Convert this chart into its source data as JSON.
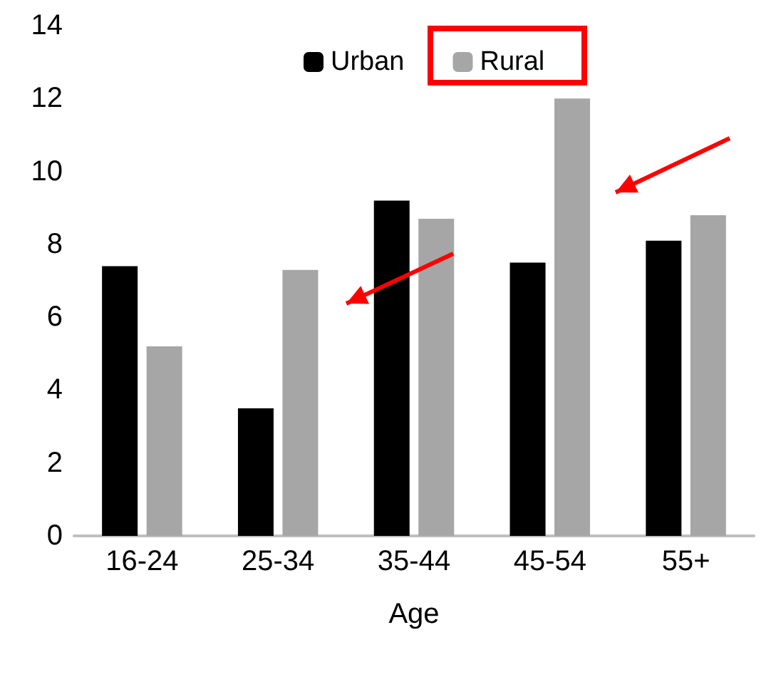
{
  "chart_data": {
    "type": "bar",
    "xlabel": "Age",
    "categories": [
      "16-24",
      "25-34",
      "35-44",
      "45-54",
      "55+"
    ],
    "series": [
      {
        "name": "Urban",
        "color": "#000000",
        "values": [
          7.4,
          3.5,
          9.2,
          7.5,
          8.1
        ]
      },
      {
        "name": "Rural",
        "color": "#a6a6a6",
        "values": [
          5.2,
          7.3,
          8.7,
          12.0,
          8.8
        ]
      }
    ],
    "ylim": [
      0,
      14
    ],
    "yticks": [
      0,
      2,
      4,
      6,
      8,
      10,
      12,
      14
    ],
    "grid": false,
    "legend": "top"
  }
}
